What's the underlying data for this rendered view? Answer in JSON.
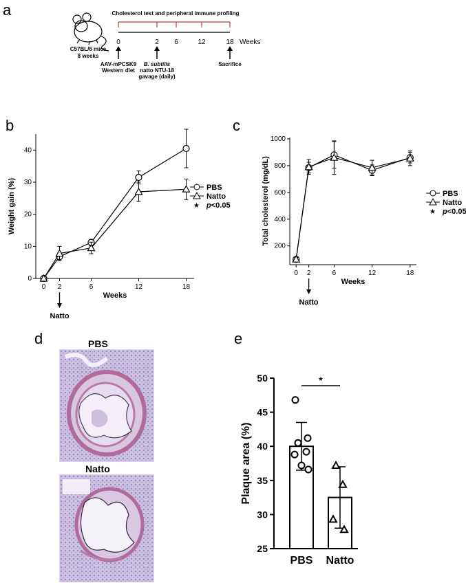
{
  "panels": {
    "a": "a",
    "b": "b",
    "c": "c",
    "d": "d",
    "e": "e"
  },
  "timeline": {
    "top_label": "Cholesterol test and peripheral immune profiling",
    "mouse_label_1": "C57BL/6 mice",
    "mouse_label_2": "8 weeks",
    "weeks_label": "Weeks",
    "ticks": [
      "0",
      "2",
      "6",
      "12",
      "18"
    ],
    "event0_line1": "AAV-mPCSK9",
    "event0_line2": "Western diet",
    "event2_line1": "B. subtilis",
    "event2_line2": "natto NTU-18",
    "event2_line3": "gavage (daily)",
    "event18": "Sacrifice",
    "colors": {
      "bracket": "#c0392b",
      "line": "#000000"
    }
  },
  "legend": {
    "pbs": "PBS",
    "natto": "Natto",
    "star": "★",
    "p": "p",
    "p_rest": "<0.05"
  },
  "natto_arrow_label": "Natto",
  "chart_data": [
    {
      "id": "b",
      "type": "line",
      "ylabel": "Weight gain (%)",
      "xlabel": "Weeks",
      "x": [
        0,
        2,
        6,
        12,
        18
      ],
      "xlim": [
        -1,
        19
      ],
      "ylim": [
        0,
        45
      ],
      "yticks": [
        0,
        10,
        20,
        30,
        40
      ],
      "xticks": [
        "0",
        "2",
        "6",
        "12",
        "18"
      ],
      "series": [
        {
          "name": "PBS",
          "marker": "circle",
          "values": [
            0,
            6.8,
            11.2,
            31.5,
            40.5
          ],
          "err": [
            0.8,
            1.2,
            1.0,
            2.0,
            6.0
          ]
        },
        {
          "name": "Natto",
          "marker": "triangle",
          "values": [
            0,
            7.8,
            9.5,
            27,
            27.8
          ],
          "err": [
            0.8,
            2.2,
            1.8,
            3.0,
            3.2
          ]
        }
      ]
    },
    {
      "id": "c",
      "type": "line",
      "ylabel": "Total cholesterol (mg/dL)",
      "xlabel": "Weeks",
      "x": [
        0,
        2,
        6,
        12,
        18
      ],
      "xlim": [
        -1,
        19
      ],
      "ylim": [
        60,
        1010
      ],
      "yticks": [
        200,
        400,
        600,
        800,
        1000
      ],
      "xticks": [
        "0",
        "2",
        "6",
        "12",
        "18"
      ],
      "series": [
        {
          "name": "PBS",
          "marker": "circle",
          "values": [
            100,
            785,
            880,
            765,
            860
          ],
          "err": [
            15,
            40,
            100,
            40,
            40
          ]
        },
        {
          "name": "Natto",
          "marker": "triangle",
          "values": [
            100,
            790,
            860,
            785,
            855
          ],
          "err": [
            15,
            55,
            125,
            55,
            55
          ]
        }
      ]
    },
    {
      "id": "e",
      "type": "bar",
      "ylabel": "Plaque area (%)",
      "categories": [
        "PBS",
        "Natto"
      ],
      "values": [
        40,
        32.5
      ],
      "err": [
        3.5,
        4.5
      ],
      "ylim": [
        25,
        50
      ],
      "yticks": [
        25,
        30,
        35,
        40,
        45,
        50
      ],
      "points": [
        [
          46.8,
          41.2,
          40.5,
          39.2,
          38.8,
          37.2,
          36.6
        ],
        [
          37.2,
          34.4,
          29.3,
          27.8
        ]
      ],
      "significance": "*"
    }
  ],
  "histology": {
    "pbs_title": "PBS",
    "natto_title": "Natto",
    "stain_bg": "#c9bde0",
    "wall_color": "#b06a9b"
  }
}
